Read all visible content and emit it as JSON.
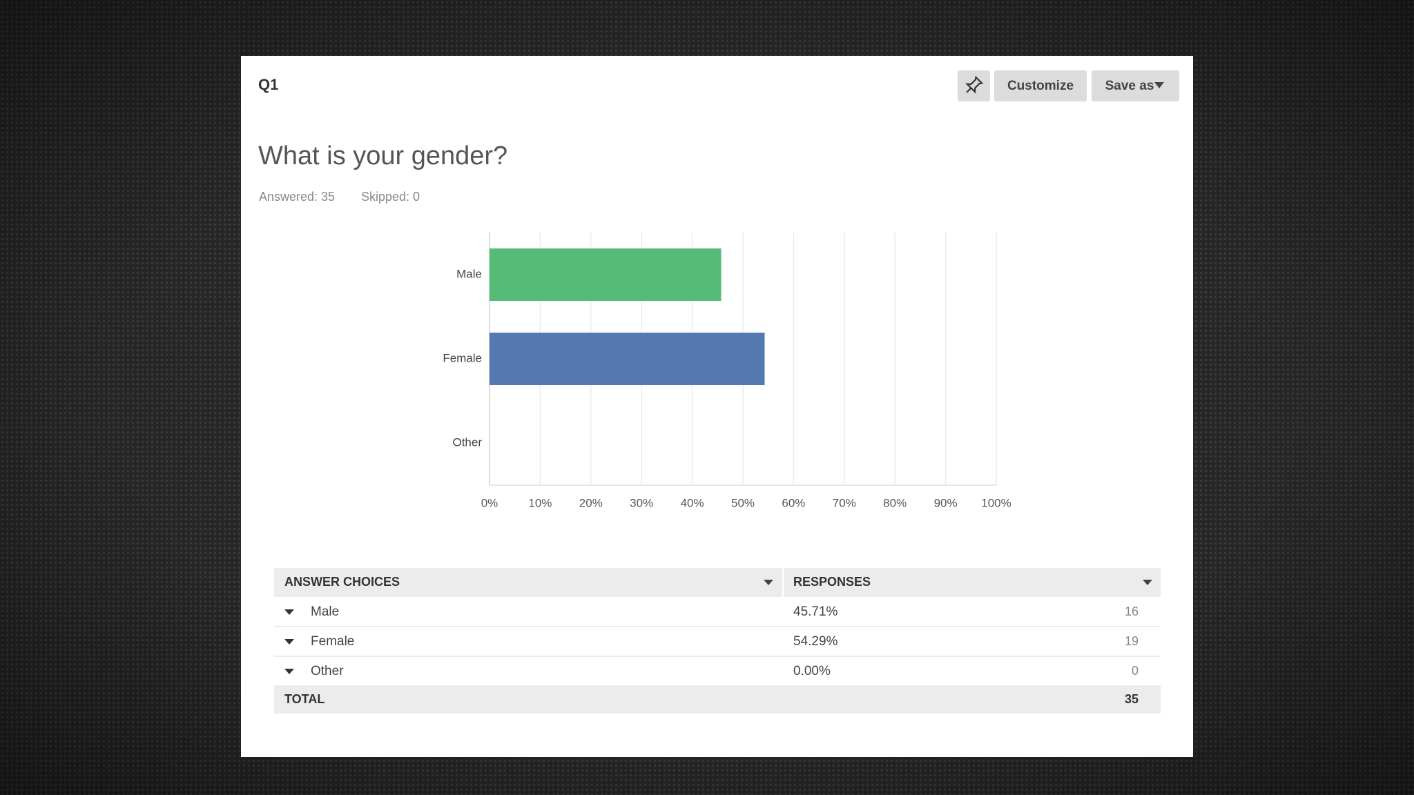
{
  "header": {
    "question_id": "Q1",
    "buttons": [
      "Customize",
      "Save as"
    ]
  },
  "question": {
    "title": "What is your gender?",
    "answered": "Answered: 35",
    "skipped": "Skipped: 0"
  },
  "chart_data": {
    "type": "hbar",
    "categories": [
      "Male",
      "Female",
      "Other"
    ],
    "values": [
      45.71,
      54.29,
      0
    ],
    "colors": [
      "#57bb78",
      "#5479b0",
      "#8e8e8e"
    ],
    "xlim": [
      0,
      100
    ],
    "xticks": [
      {
        "value": 0,
        "label": "0%"
      },
      {
        "value": 10,
        "label": "10%"
      },
      {
        "value": 20,
        "label": "20%"
      },
      {
        "value": 30,
        "label": "30%"
      },
      {
        "value": 40,
        "label": "40%"
      },
      {
        "value": 50,
        "label": "50%"
      },
      {
        "value": 60,
        "label": "60%"
      },
      {
        "value": 70,
        "label": "70%"
      },
      {
        "value": 80,
        "label": "80%"
      },
      {
        "value": 90,
        "label": "90%"
      },
      {
        "value": 100,
        "label": "100%"
      }
    ],
    "grid": true
  },
  "table": {
    "columns": [
      "ANSWER CHOICES",
      "RESPONSES"
    ],
    "rows": [
      [
        "Male",
        "45.71%",
        16
      ],
      [
        "Female",
        "54.29%",
        19
      ],
      [
        "Other",
        "0.00%",
        0
      ]
    ],
    "total": [
      "TOTAL",
      35
    ]
  }
}
